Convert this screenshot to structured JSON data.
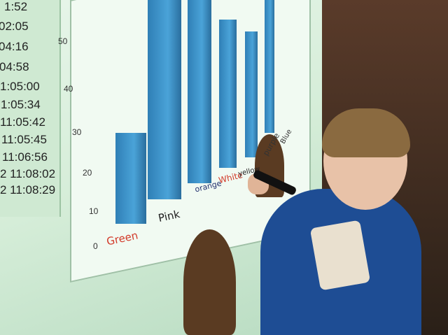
{
  "timestamps": [
    "1:52",
    "02:05",
    "04:16",
    "04:58",
    "1:05:00",
    "1:05:34",
    "11:05:42",
    "11:05:45",
    "11:06:56",
    "2 11:08:02",
    "2 11:08:29"
  ],
  "axis_ticks": [
    "0",
    "10",
    "20",
    "30",
    "40",
    "50"
  ],
  "handwritten_labels": [
    {
      "text": "Green",
      "color": "#d23a2a"
    },
    {
      "text": "Pink",
      "color": "#222222"
    },
    {
      "text": "orange",
      "color": "#22306e"
    },
    {
      "text": "White",
      "color": "#d23a2a"
    },
    {
      "text": "yellow",
      "color": "#222222"
    },
    {
      "text": "purple",
      "color": "#333333"
    },
    {
      "text": "Blue",
      "color": "#333333"
    }
  ],
  "bar_color": "#3a8fc4"
}
